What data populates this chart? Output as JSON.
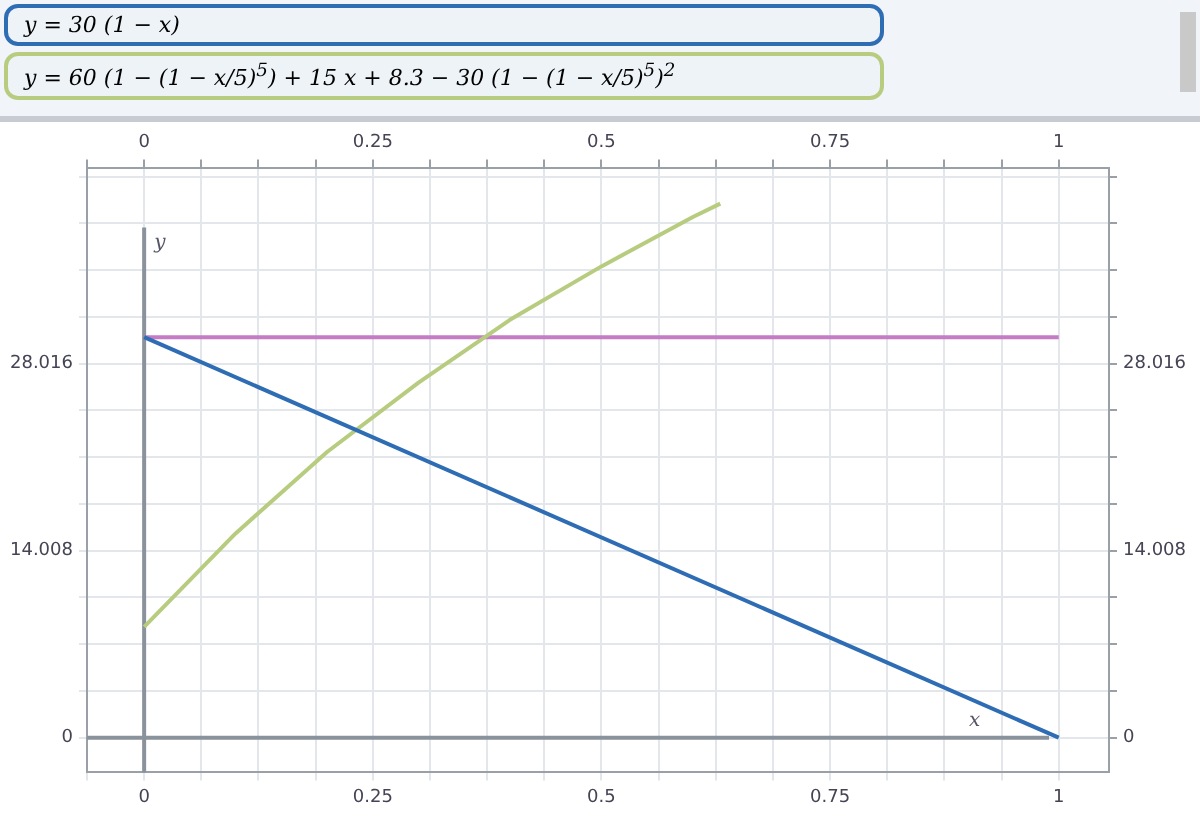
{
  "chart_data": {
    "type": "line",
    "xlabel": "x",
    "ylabel": "y",
    "series": [
      {
        "name": "y = 30 (1 − x)",
        "color": "#2e6db4",
        "x": [
          0,
          1
        ],
        "values": [
          30,
          0
        ]
      },
      {
        "name": "y = 60 (1 − (1 − x/5)$^{5}$) + 15 x + 8.3 − 30 (1 − (1 − x/5)$^{5}$)$^{2}$",
        "color": "#b8cc80",
        "x": [
          0,
          0.1,
          0.2,
          0.3,
          0.4,
          0.5,
          0.6,
          0.63
        ],
        "values": [
          8.3,
          15.3,
          21.4,
          26.6,
          31.3,
          35.3,
          39,
          40
        ]
      },
      {
        "color": "#c47cc4",
        "x": [
          0,
          1
        ],
        "values": [
          30,
          30
        ]
      }
    ],
    "xlim": [
      -0.0625,
      1.055
    ],
    "x2lim": [
      -0.0625,
      1.055
    ],
    "xticks": [
      {
        "value": -0.0625,
        "label": null
      },
      0,
      {
        "value": 0.0625,
        "label": null
      },
      {
        "value": 0.125,
        "label": null
      },
      {
        "value": 0.1875,
        "label": null
      },
      0.25,
      {
        "value": 0.3125,
        "label": null
      },
      {
        "value": 0.375,
        "label": null
      },
      {
        "value": 0.4375,
        "label": null
      },
      0.5,
      {
        "value": 0.5625,
        "label": null
      },
      {
        "value": 0.625,
        "label": null
      },
      {
        "value": 0.6875,
        "label": null
      },
      0.75,
      {
        "value": 0.8125,
        "label": null
      },
      {
        "value": 0.875,
        "label": null
      },
      {
        "value": 0.9375,
        "label": null
      },
      1
    ],
    "x2ticks": [
      {
        "value": -0.0625,
        "label": null
      },
      0,
      {
        "value": 0.0625,
        "label": null
      },
      {
        "value": 0.125,
        "label": null
      },
      {
        "value": 0.1875,
        "label": null
      },
      0.25,
      {
        "value": 0.3125,
        "label": null
      },
      {
        "value": 0.375,
        "label": null
      },
      {
        "value": 0.4375,
        "label": null
      },
      0.5,
      {
        "value": 0.5625,
        "label": null
      },
      {
        "value": 0.625,
        "label": null
      },
      {
        "value": 0.6875,
        "label": null
      },
      0.75,
      {
        "value": 0.8125,
        "label": null
      },
      {
        "value": 0.875,
        "label": null
      },
      {
        "value": 0.9375,
        "label": null
      },
      1
    ],
    "ylim": [
      -2.6,
      42.7
    ],
    "y2lim": [
      -2.6,
      42.7
    ],
    "yticks": [
      0,
      {
        "value": 3.502,
        "label": null
      },
      {
        "value": 7.004,
        "label": null
      },
      {
        "value": 10.506,
        "label": null
      },
      14.008,
      {
        "value": 17.51,
        "label": null
      },
      {
        "value": 21.012,
        "label": null
      },
      {
        "value": 24.514,
        "label": null
      },
      28.016,
      {
        "value": 31.518,
        "label": null
      },
      {
        "value": 35.02,
        "label": null
      },
      {
        "value": 38.522,
        "label": null
      },
      {
        "value": 42.024,
        "label": null
      }
    ],
    "y2ticks": [
      0,
      {
        "value": 3.502,
        "label": null
      },
      {
        "value": 7.004,
        "label": null
      },
      {
        "value": 10.506,
        "label": null
      },
      14.008,
      {
        "value": 17.51,
        "label": null
      },
      {
        "value": 21.012,
        "label": null
      },
      {
        "value": 24.514,
        "label": null
      },
      28.016,
      {
        "value": 31.518,
        "label": null
      },
      {
        "value": 35.02,
        "label": null
      },
      {
        "value": 38.522,
        "label": null
      },
      {
        "value": 42.024,
        "label": null
      }
    ],
    "grid": true,
    "legend": "top left",
    "marker": "none",
    "line_style": "solid"
  }
}
